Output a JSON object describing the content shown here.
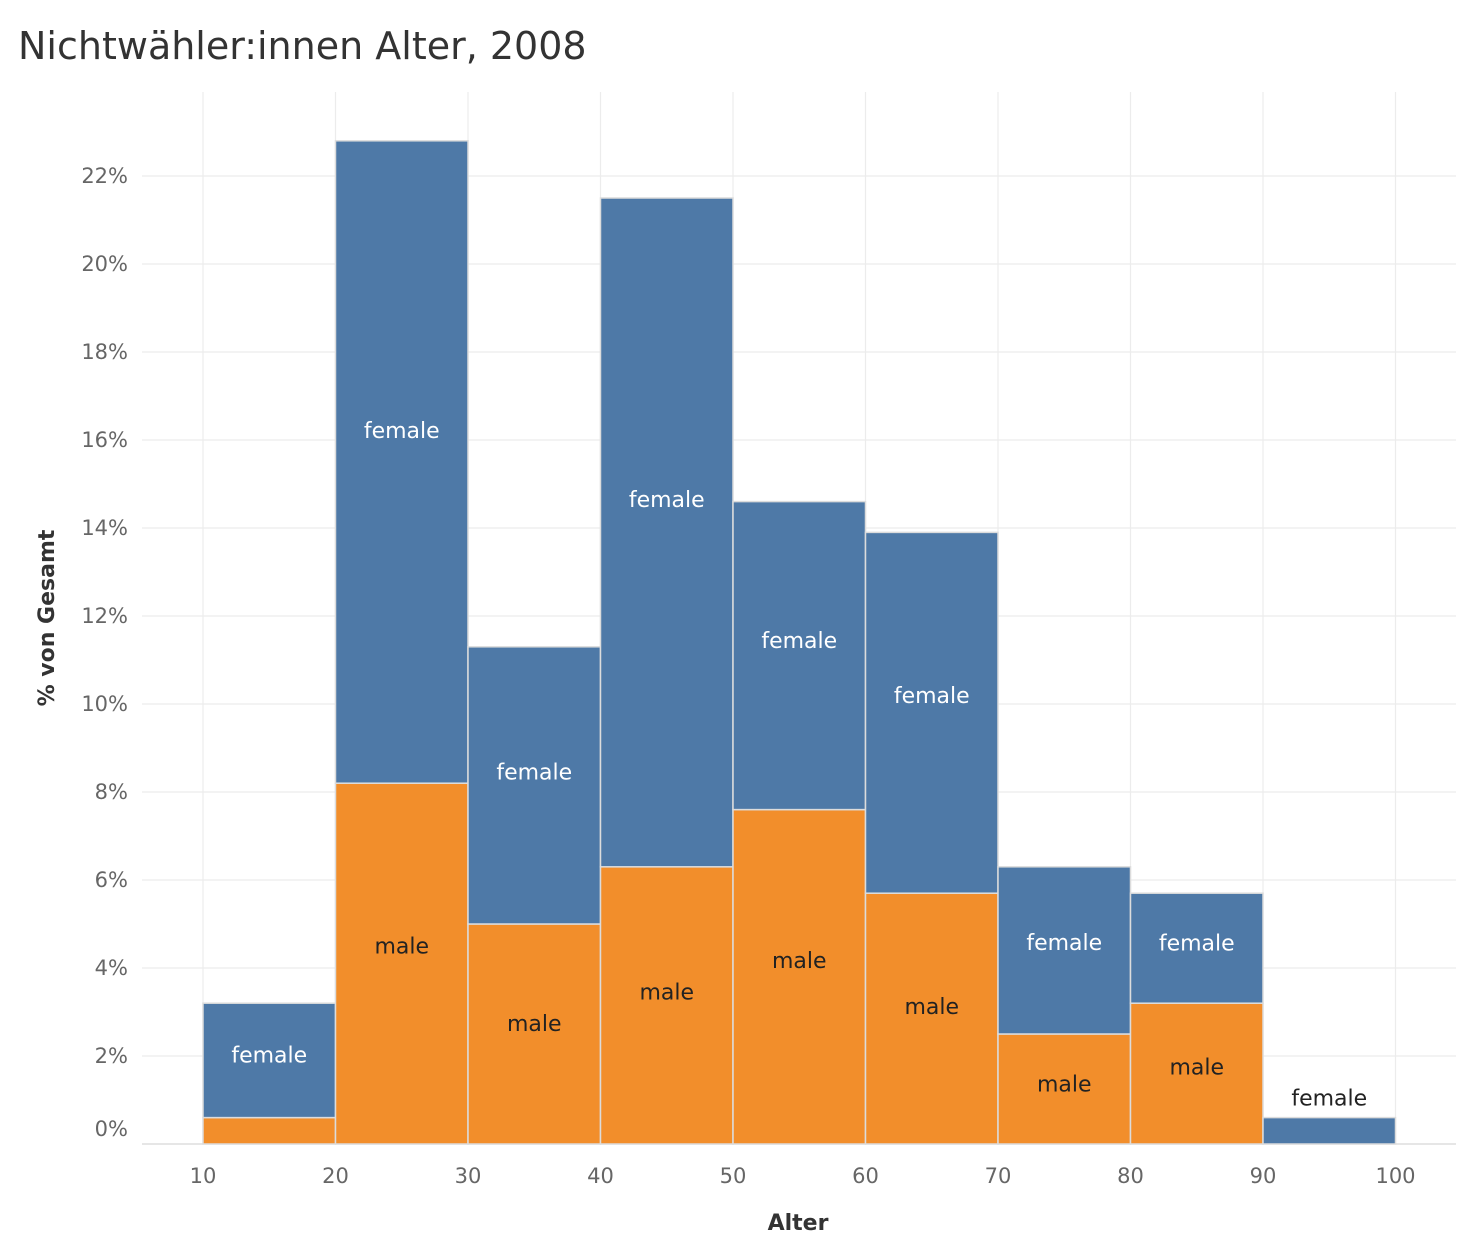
{
  "chart_data": {
    "type": "bar",
    "title": "Nichtwähler:innen Alter, 2008",
    "xlabel": "Alter",
    "ylabel": "% von Gesamt",
    "x_ticks": [
      "10",
      "20",
      "30",
      "40",
      "50",
      "60",
      "70",
      "80",
      "90",
      "100"
    ],
    "y_ticks": [
      "0%",
      "2%",
      "4%",
      "6%",
      "8%",
      "10%",
      "12%",
      "14%",
      "16%",
      "18%",
      "20%",
      "22%"
    ],
    "xlim": [
      10,
      100
    ],
    "ylim": [
      0,
      23.5
    ],
    "grid": true,
    "stacked": true,
    "bins": [
      [
        10,
        20
      ],
      [
        20,
        30
      ],
      [
        30,
        40
      ],
      [
        40,
        50
      ],
      [
        50,
        60
      ],
      [
        60,
        70
      ],
      [
        70,
        80
      ],
      [
        80,
        90
      ],
      [
        90,
        100
      ]
    ],
    "series": [
      {
        "name": "male",
        "color": "#f28e2b",
        "values": [
          0.6,
          8.2,
          5.0,
          6.3,
          7.6,
          5.7,
          2.5,
          3.2,
          0.0
        ],
        "labels": [
          "",
          "male",
          "male",
          "male",
          "male",
          "male",
          "male",
          "male",
          ""
        ]
      },
      {
        "name": "female",
        "color": "#4e79a7",
        "values": [
          2.6,
          14.6,
          6.3,
          15.2,
          7.0,
          8.2,
          3.8,
          2.5,
          0.6
        ],
        "labels": [
          "female",
          "female",
          "female",
          "female",
          "female",
          "female",
          "female",
          "female",
          "female"
        ]
      }
    ]
  }
}
